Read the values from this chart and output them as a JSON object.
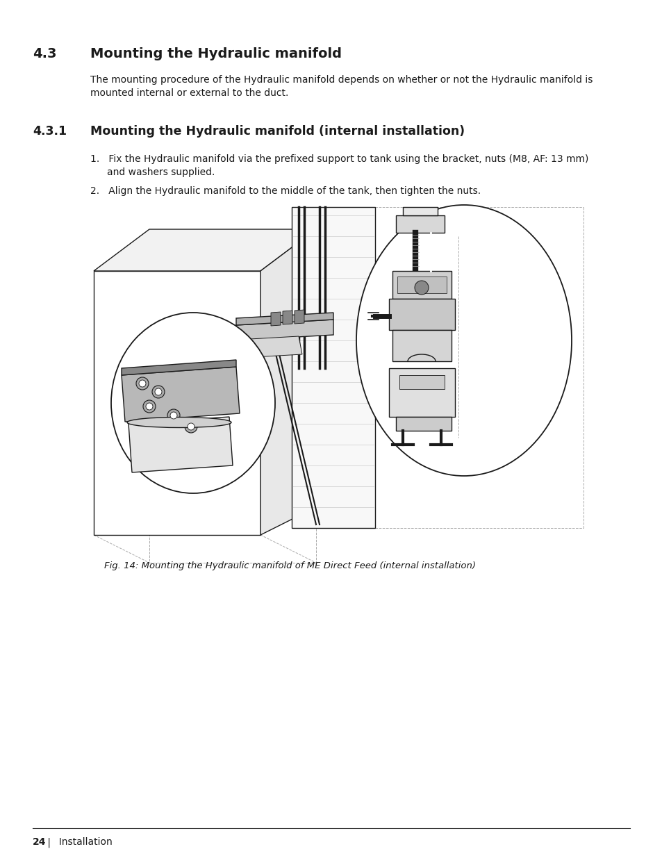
{
  "bg_color": "#ffffff",
  "text_color": "#1a1a1a",
  "section_number": "4.3",
  "section_title": "Mounting the Hydraulic manifold",
  "intro_text_line1": "The mounting procedure of the Hydraulic manifold depends on whether or not the Hydraulic manifold is",
  "intro_text_line2": "mounted internal or external to the duct.",
  "subsection_number": "4.3.1",
  "subsection_title": "Mounting the Hydraulic manifold (internal installation)",
  "step1_line1": "Fix the Hydraulic manifold via the prefixed support to tank using the bracket, nuts (M8, AF: 13 mm)",
  "step1_line2": "and washers supplied.",
  "step2": "Align the Hydraulic manifold to the middle of the tank, then tighten the nuts.",
  "fig_caption": "Fig. 14: Mounting the Hydraulic manifold of ME Direct Feed (internal installation)",
  "footer_num": "24",
  "footer_sep": " |",
  "footer_rest": "  Installation"
}
